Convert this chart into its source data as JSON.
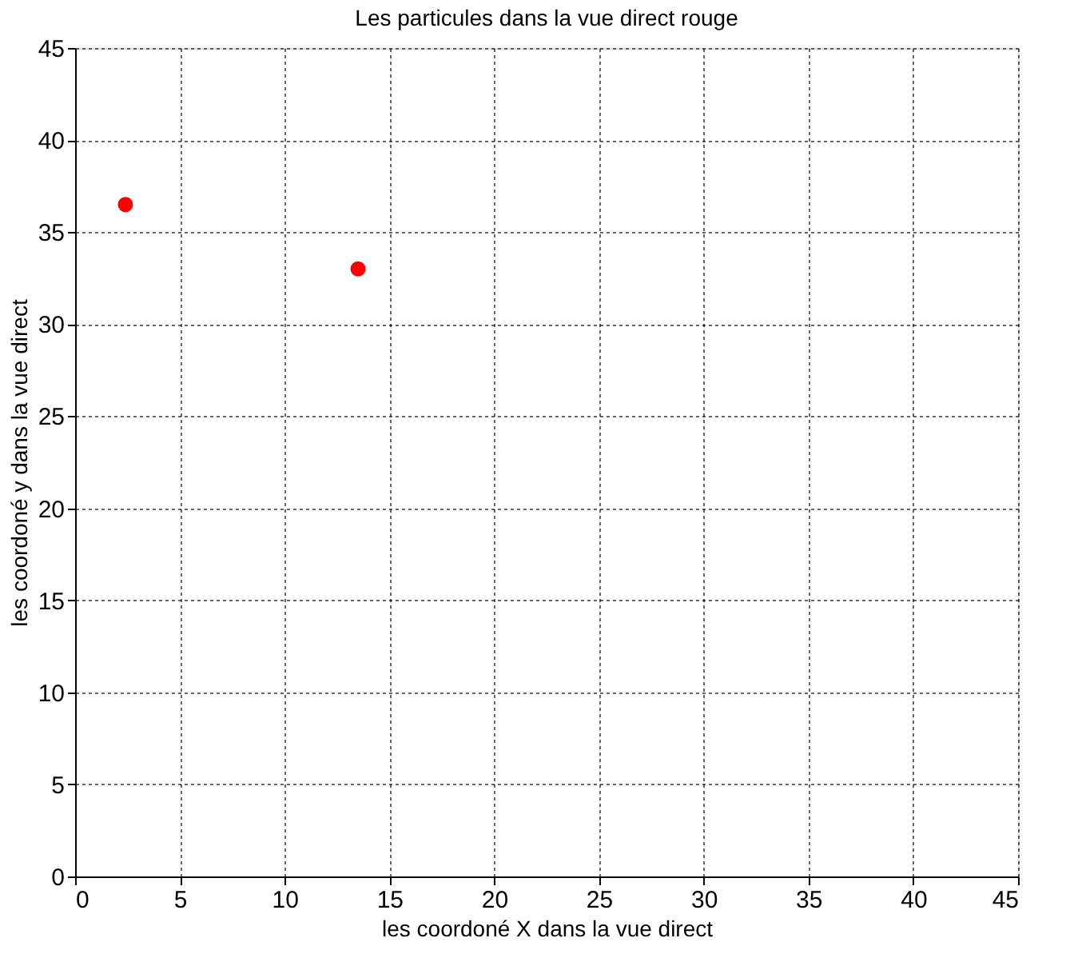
{
  "chart_data": {
    "type": "scatter",
    "title": "Les particules dans la vue direct rouge",
    "xlabel": "les coordoné X dans la vue direct",
    "ylabel": "les coordoné y dans la vue direct",
    "x": [
      2.4,
      13.5
    ],
    "series": [
      {
        "color": "#ff0000",
        "values": [
          36.5,
          33.0
        ]
      }
    ],
    "xlim": [
      0,
      45
    ],
    "ylim": [
      0,
      45
    ],
    "xticks": [
      0,
      5,
      10,
      15,
      20,
      25,
      30,
      35,
      40,
      45
    ],
    "yticks": [
      0,
      5,
      10,
      15,
      20,
      25,
      30,
      35,
      40,
      45
    ],
    "grid": true,
    "marker": "circle"
  }
}
